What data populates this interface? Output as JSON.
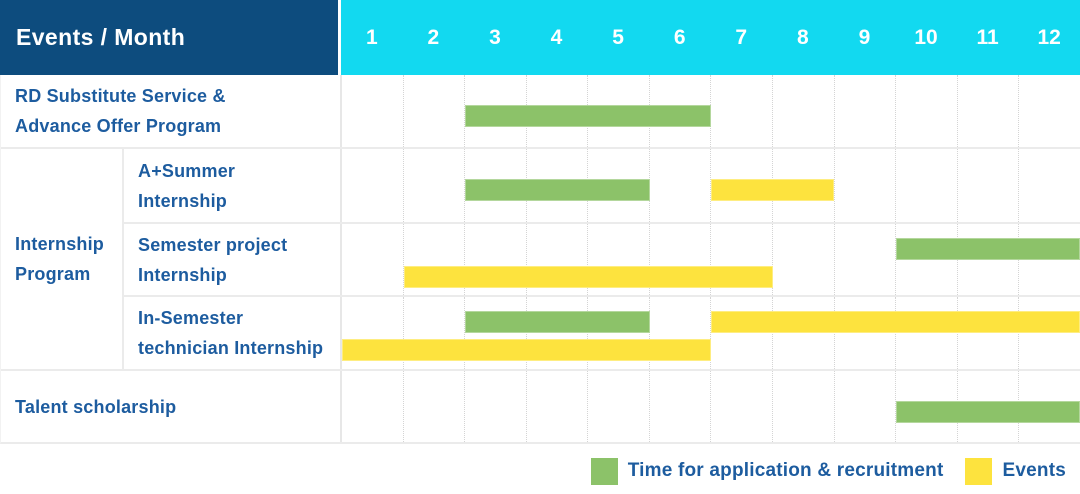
{
  "header": {
    "title": "Events / Month",
    "months": [
      "1",
      "2",
      "3",
      "4",
      "5",
      "6",
      "7",
      "8",
      "9",
      "10",
      "11",
      "12"
    ]
  },
  "colors": {
    "header_navy": "#0d4c7e",
    "header_cyan": "#12d9f0",
    "label_blue": "#1d5c9f",
    "bar_application": "#8cc269",
    "bar_event": "#fde33e",
    "grid_line": "#ebebeb"
  },
  "legend": [
    {
      "key": "application",
      "label": "Time for application & recruitment"
    },
    {
      "key": "event",
      "label": "Events"
    }
  ],
  "chart_data": {
    "type": "bar",
    "subtype": "gantt",
    "title": "Events / Month",
    "xlabel": "Month",
    "x_categories": [
      "1",
      "2",
      "3",
      "4",
      "5",
      "6",
      "7",
      "8",
      "9",
      "10",
      "11",
      "12"
    ],
    "x_range": [
      1,
      12
    ],
    "grid": "dotted-vertical-month-lines",
    "legend_position": "bottom-right",
    "series_meaning": {
      "application": "Time for application & recruitment (green)",
      "event": "Events (yellow)"
    },
    "sections": [
      {
        "type": "simple",
        "label": "RD Substitute Service &\nAdvance Offer Program",
        "lines": [
          [
            {
              "kind": "application",
              "start": 3,
              "end": 6
            }
          ]
        ]
      },
      {
        "type": "group",
        "group_label": "Internship\nProgram",
        "items": [
          {
            "label": "A+Summer\nInternship",
            "lines": [
              [
                {
                  "kind": "application",
                  "start": 3,
                  "end": 5
                },
                {
                  "kind": "event",
                  "start": 7,
                  "end": 8
                }
              ]
            ]
          },
          {
            "label": "Semester project\nInternship",
            "lines": [
              [
                {
                  "kind": "application",
                  "start": 10,
                  "end": 12
                }
              ],
              [
                {
                  "kind": "event",
                  "start": 2,
                  "end": 7
                }
              ]
            ]
          },
          {
            "label": "In-Semester\ntechnician Internship",
            "lines": [
              [
                {
                  "kind": "application",
                  "start": 3,
                  "end": 5
                },
                {
                  "kind": "event",
                  "start": 7,
                  "end": 12
                }
              ],
              [
                {
                  "kind": "event",
                  "start": 1,
                  "end": 6
                }
              ]
            ]
          }
        ]
      },
      {
        "type": "simple",
        "label": "Talent scholarship",
        "lines": [
          [
            {
              "kind": "application",
              "start": 10,
              "end": 12
            }
          ]
        ]
      }
    ]
  }
}
